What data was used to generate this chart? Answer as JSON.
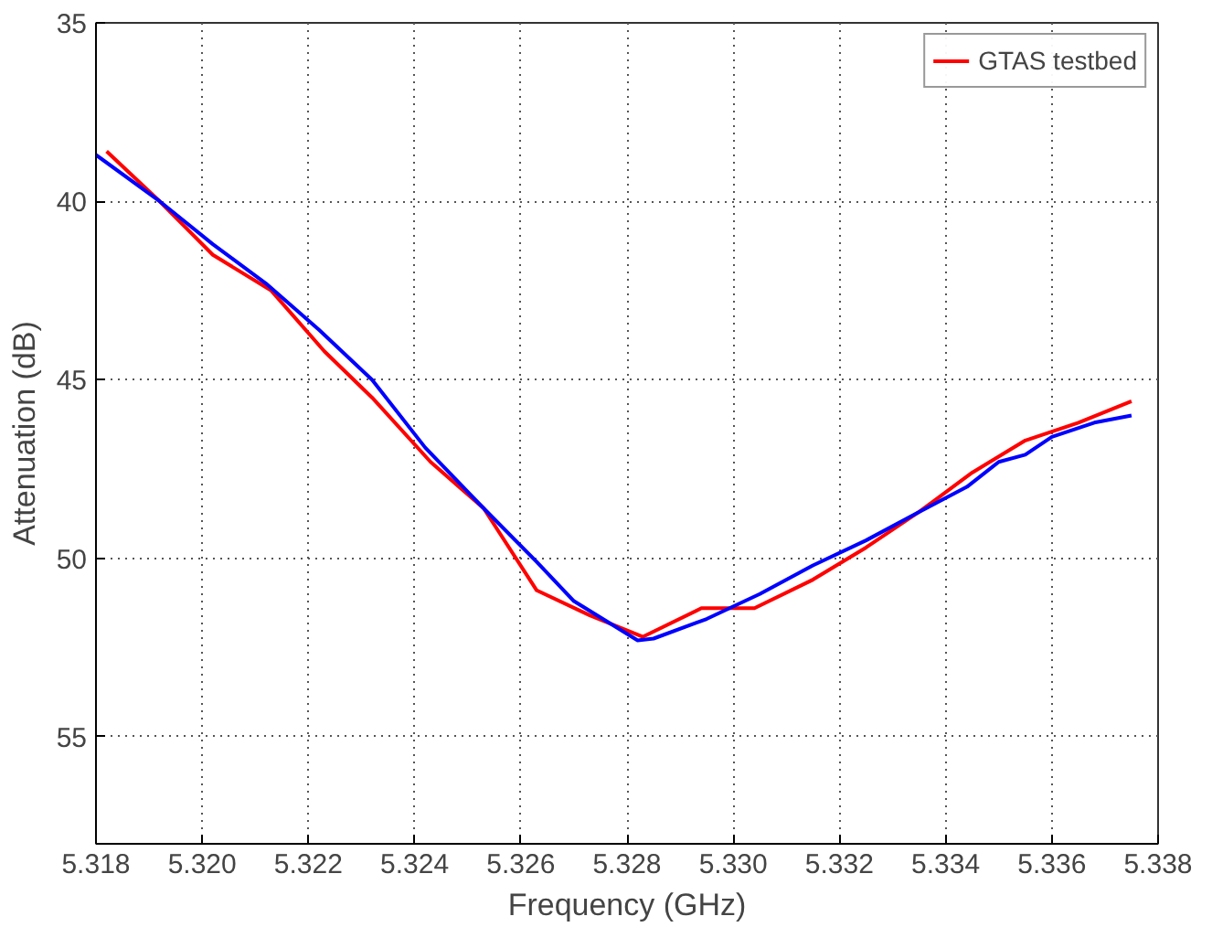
{
  "chart_data": {
    "type": "line",
    "xlabel": "Frequency (GHz)",
    "ylabel": "Attenuation (dB)",
    "xlim": [
      5.318,
      5.338
    ],
    "xticks": [
      {
        "value": 5.318,
        "label": "5.318"
      },
      {
        "value": 5.32,
        "label": "5.320"
      },
      {
        "value": 5.322,
        "label": "5.322"
      },
      {
        "value": 5.324,
        "label": "5.324"
      },
      {
        "value": 5.326,
        "label": "5.326"
      },
      {
        "value": 5.328,
        "label": "5.328"
      },
      {
        "value": 5.33,
        "label": "5.330"
      },
      {
        "value": 5.332,
        "label": "5.332"
      },
      {
        "value": 5.334,
        "label": "5.334"
      },
      {
        "value": 5.336,
        "label": "5.336"
      },
      {
        "value": 5.338,
        "label": "5.338"
      }
    ],
    "ylim": [
      58,
      35
    ],
    "yticks": [
      35,
      40,
      45,
      50,
      55
    ],
    "grid": true,
    "legend": "top right",
    "line_style": "solid",
    "series": [
      {
        "name": "GTAS testbed",
        "color": "#ff0000",
        "x": [
          5.3182,
          5.3192,
          5.3202,
          5.3213,
          5.3223,
          5.3232,
          5.3243,
          5.3253,
          5.3263,
          5.3273,
          5.3283,
          5.3294,
          5.3304,
          5.3315,
          5.3325,
          5.3335,
          5.3345,
          5.3355,
          5.3365,
          5.3375
        ],
        "values": [
          38.6,
          40.0,
          41.5,
          42.5,
          44.2,
          45.5,
          47.3,
          48.6,
          50.9,
          51.6,
          52.2,
          51.4,
          51.4,
          50.6,
          49.7,
          48.7,
          47.6,
          46.7,
          46.2,
          45.6
        ]
      },
      {
        "color": "#0000ff",
        "x": [
          5.318,
          5.3192,
          5.3202,
          5.3212,
          5.3222,
          5.3232,
          5.3242,
          5.3253,
          5.3263,
          5.327,
          5.3282,
          5.3285,
          5.3295,
          5.3305,
          5.3315,
          5.3325,
          5.3335,
          5.3344,
          5.335,
          5.3355,
          5.336,
          5.3368,
          5.3375
        ],
        "values": [
          38.7,
          40.0,
          41.2,
          42.3,
          43.6,
          45.0,
          46.9,
          48.6,
          50.1,
          51.2,
          52.3,
          52.25,
          51.7,
          51.0,
          50.2,
          49.5,
          48.7,
          48.0,
          47.3,
          47.1,
          46.6,
          46.2,
          46.0
        ]
      }
    ]
  }
}
